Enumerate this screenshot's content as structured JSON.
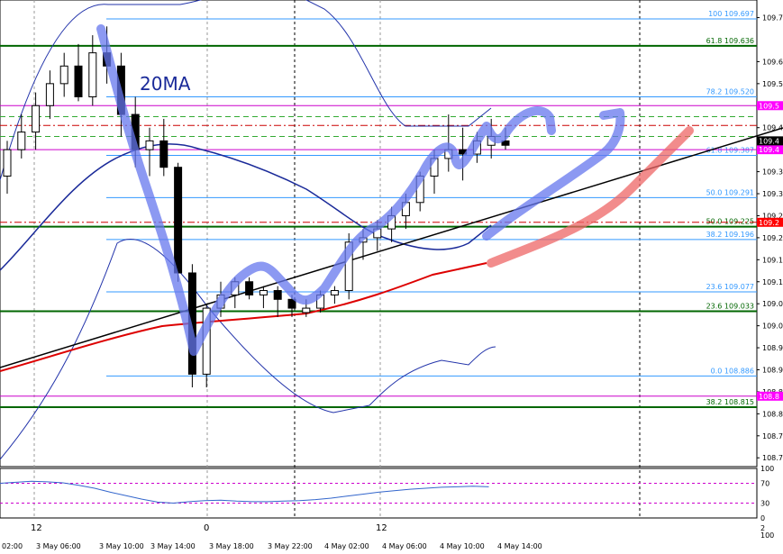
{
  "chart_data": {
    "type": "candlestick",
    "annotation": "20MA",
    "price_axis": {
      "min": 108.68,
      "max": 109.74,
      "ticks": [
        "109.70",
        "109.60",
        "109.55",
        "109.50",
        "109.45",
        "109.40",
        "109.35",
        "109.30",
        "109.25",
        "109.20",
        "109.15",
        "109.10",
        "109.05",
        "109.00",
        "108.95",
        "108.90",
        "108.85",
        "108.80",
        "108.75",
        "108.70"
      ],
      "tick_values": [
        109.7,
        109.6,
        109.55,
        109.5,
        109.45,
        109.4,
        109.35,
        109.3,
        109.25,
        109.2,
        109.15,
        109.1,
        109.05,
        109.0,
        108.95,
        108.9,
        108.85,
        108.8,
        108.75,
        108.7
      ],
      "grid": true
    },
    "current_price": {
      "label": "109.4",
      "value": 109.42
    },
    "price_markers": [
      {
        "label": "109.5",
        "value": 109.5,
        "color": "#ff00ff"
      },
      {
        "label": "109.4",
        "value": 109.4,
        "color": "#ff00ff"
      },
      {
        "label": "109.2",
        "value": 109.235,
        "color": "#ff0000"
      },
      {
        "label": "108.8",
        "value": 108.84,
        "color": "#ff00ff"
      }
    ],
    "fibo_levels": [
      {
        "label": "100   109.697",
        "value": 109.697,
        "color": "#3399ff"
      },
      {
        "label": "61.8   109.636",
        "value": 109.636,
        "color": "#006600"
      },
      {
        "label": "78.2   109.520",
        "value": 109.52,
        "color": "#3399ff"
      },
      {
        "label": "61.8   109.387",
        "value": 109.387,
        "color": "#3399ff"
      },
      {
        "label": "50.0   109.291",
        "value": 109.291,
        "color": "#3399ff"
      },
      {
        "label": "50.0   109.225",
        "value": 109.225,
        "color": "#006600"
      },
      {
        "label": "38.2   109.196",
        "value": 109.196,
        "color": "#3399ff"
      },
      {
        "label": "23.6   109.077",
        "value": 109.077,
        "color": "#3399ff"
      },
      {
        "label": "23.6   109.033",
        "value": 109.033,
        "color": "#006600"
      },
      {
        "label": "0.0   108.886",
        "value": 108.886,
        "color": "#3399ff"
      },
      {
        "label": "38.2   108.815",
        "value": 108.815,
        "color": "#006600"
      }
    ],
    "candles": [
      {
        "o": 109.34,
        "h": 109.42,
        "l": 109.3,
        "c": 109.4
      },
      {
        "o": 109.4,
        "h": 109.48,
        "l": 109.38,
        "c": 109.44
      },
      {
        "o": 109.44,
        "h": 109.53,
        "l": 109.4,
        "c": 109.5
      },
      {
        "o": 109.5,
        "h": 109.58,
        "l": 109.47,
        "c": 109.55
      },
      {
        "o": 109.55,
        "h": 109.62,
        "l": 109.52,
        "c": 109.59
      },
      {
        "o": 109.59,
        "h": 109.64,
        "l": 109.51,
        "c": 109.52
      },
      {
        "o": 109.52,
        "h": 109.66,
        "l": 109.5,
        "c": 109.62
      },
      {
        "o": 109.62,
        "h": 109.68,
        "l": 109.55,
        "c": 109.59
      },
      {
        "o": 109.59,
        "h": 109.62,
        "l": 109.43,
        "c": 109.48
      },
      {
        "o": 109.48,
        "h": 109.52,
        "l": 109.36,
        "c": 109.4
      },
      {
        "o": 109.4,
        "h": 109.45,
        "l": 109.34,
        "c": 109.42
      },
      {
        "o": 109.42,
        "h": 109.47,
        "l": 109.34,
        "c": 109.36
      },
      {
        "o": 109.36,
        "h": 109.37,
        "l": 109.1,
        "c": 109.12
      },
      {
        "o": 109.12,
        "h": 109.14,
        "l": 108.86,
        "c": 108.89
      },
      {
        "o": 108.89,
        "h": 109.05,
        "l": 108.86,
        "c": 109.04
      },
      {
        "o": 109.04,
        "h": 109.1,
        "l": 109.02,
        "c": 109.07
      },
      {
        "o": 109.07,
        "h": 109.11,
        "l": 109.04,
        "c": 109.1
      },
      {
        "o": 109.1,
        "h": 109.11,
        "l": 109.06,
        "c": 109.07
      },
      {
        "o": 109.07,
        "h": 109.09,
        "l": 109.04,
        "c": 109.08
      },
      {
        "o": 109.08,
        "h": 109.09,
        "l": 109.02,
        "c": 109.06
      },
      {
        "o": 109.06,
        "h": 109.07,
        "l": 109.02,
        "c": 109.04
      },
      {
        "o": 109.03,
        "h": 109.06,
        "l": 109.02,
        "c": 109.04
      },
      {
        "o": 109.04,
        "h": 109.08,
        "l": 109.03,
        "c": 109.07
      },
      {
        "o": 109.07,
        "h": 109.09,
        "l": 109.05,
        "c": 109.08
      },
      {
        "o": 109.08,
        "h": 109.21,
        "l": 109.06,
        "c": 109.19
      },
      {
        "o": 109.19,
        "h": 109.22,
        "l": 109.15,
        "c": 109.2
      },
      {
        "o": 109.2,
        "h": 109.24,
        "l": 109.17,
        "c": 109.22
      },
      {
        "o": 109.22,
        "h": 109.27,
        "l": 109.19,
        "c": 109.25
      },
      {
        "o": 109.25,
        "h": 109.3,
        "l": 109.22,
        "c": 109.28
      },
      {
        "o": 109.28,
        "h": 109.35,
        "l": 109.26,
        "c": 109.34
      },
      {
        "o": 109.34,
        "h": 109.4,
        "l": 109.3,
        "c": 109.38
      },
      {
        "o": 109.38,
        "h": 109.48,
        "l": 109.35,
        "c": 109.4
      },
      {
        "o": 109.4,
        "h": 109.45,
        "l": 109.33,
        "c": 109.39
      },
      {
        "o": 109.39,
        "h": 109.44,
        "l": 109.37,
        "c": 109.42
      },
      {
        "o": 109.41,
        "h": 109.47,
        "l": 109.38,
        "c": 109.43
      },
      {
        "o": 109.42,
        "h": 109.45,
        "l": 109.4,
        "c": 109.41
      }
    ],
    "time_labels": [
      "02:00",
      "3 May 06:00",
      "3 May 10:00",
      "3 May 14:00",
      "3 May 18:00",
      "3 May 22:00",
      "4 May 02:00",
      "4 May 06:00",
      "4 May 10:00",
      "4 May 14:00"
    ],
    "day_labels": [
      "12",
      "0",
      "12"
    ],
    "indicator": {
      "ticks": [
        "100",
        "70",
        "30",
        "0"
      ],
      "tick_values": [
        100,
        70,
        30,
        0
      ],
      "levels": [
        70,
        30
      ],
      "values": [
        70,
        72,
        74,
        73,
        71,
        66,
        60,
        52,
        45,
        38,
        32,
        30,
        33,
        35,
        36,
        34,
        33,
        33,
        34,
        35,
        37,
        40,
        44,
        48,
        52,
        55,
        58,
        60,
        62,
        63,
        64,
        63
      ]
    },
    "bottom_scale": {
      "top": "2",
      "bottom": "100"
    }
  }
}
